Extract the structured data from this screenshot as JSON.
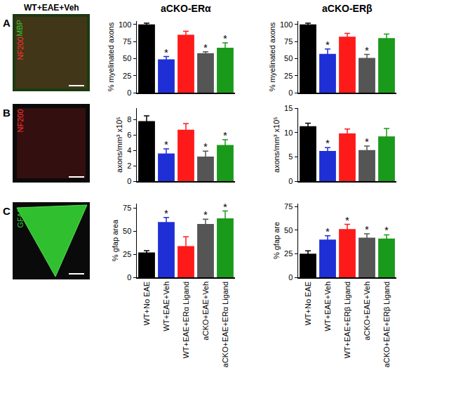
{
  "figure": {
    "column_headers": [
      "WT+EAE+Veh",
      "aCKO-ERα",
      "aCKO-ERβ"
    ],
    "panels": [
      {
        "letter": "A",
        "stain_labels": [
          {
            "text": "MBP",
            "color": "#33cc33"
          },
          {
            "text": "NF200",
            "color": "#ff3333"
          }
        ]
      },
      {
        "letter": "B",
        "stain_labels": [
          {
            "text": "NF200",
            "color": "#ff3333"
          }
        ]
      },
      {
        "letter": "C",
        "stain_labels": [
          {
            "text": "GFAP",
            "color": "#33cc33"
          }
        ]
      }
    ]
  },
  "chart_data": [
    {
      "type": "bar",
      "y_label": "% myelinated axons",
      "categories": [
        "WT+No EAE",
        "WT+EAE+Veh",
        "WT+EAE+ERα Ligand",
        "aCKO+EAE+Veh",
        "aCKO+EAE+ERα Ligand"
      ],
      "values": [
        100,
        49,
        85,
        58,
        66
      ],
      "errors": [
        2,
        4,
        5,
        2,
        7
      ],
      "colors": [
        "#000000",
        "#1f2fd6",
        "#ff1a1a",
        "#555555",
        "#1a9a1a"
      ],
      "annotations": [
        null,
        "*",
        null,
        "*",
        "*"
      ],
      "ylim": [
        0,
        105
      ],
      "yticks": [
        0,
        25,
        50,
        75,
        100
      ],
      "tick_labels": "y"
    },
    {
      "type": "bar",
      "y_label": "% myelinated axons",
      "categories": [
        "WT+No EAE",
        "WT+EAE+Veh",
        "WT+EAE+ERβ Ligand",
        "aCKO+EAE+Veh",
        "aCKO+EAE+ERβ Ligand"
      ],
      "values": [
        100,
        57,
        82,
        51,
        80
      ],
      "errors": [
        2,
        7,
        5,
        5,
        6
      ],
      "colors": [
        "#000000",
        "#1f2fd6",
        "#ff1a1a",
        "#555555",
        "#1a9a1a"
      ],
      "annotations": [
        null,
        "*",
        null,
        "*",
        null
      ],
      "ylim": [
        0,
        105
      ],
      "yticks": [
        0,
        25,
        50,
        75,
        100
      ],
      "tick_labels": "y"
    },
    {
      "type": "bar",
      "y_label": "axons/mm³ x10⁵",
      "categories": [
        "WT+No EAE",
        "WT+EAE+Veh",
        "WT+EAE+ERα Ligand",
        "aCKO+EAE+Veh",
        "aCKO+EAE+ERα Ligand"
      ],
      "values": [
        7.8,
        3.6,
        6.7,
        3.2,
        4.7
      ],
      "errors": [
        0.7,
        0.6,
        0.8,
        0.7,
        0.7
      ],
      "colors": [
        "#000000",
        "#1f2fd6",
        "#ff1a1a",
        "#555555",
        "#1a9a1a"
      ],
      "annotations": [
        null,
        "*",
        null,
        "*",
        "*"
      ],
      "ylim": [
        0,
        9.5
      ],
      "yticks": [
        0,
        2,
        4,
        6,
        8
      ],
      "tick_labels": "y"
    },
    {
      "type": "bar",
      "y_label": "axons/mm³ x10⁵",
      "categories": [
        "WT+No EAE",
        "WT+EAE+Veh",
        "WT+EAE+ERβ Ligand",
        "aCKO+EAE+Veh",
        "aCKO+EAE+ERβ Ligand"
      ],
      "values": [
        11.3,
        6.2,
        9.8,
        6.4,
        9.2
      ],
      "errors": [
        0.6,
        0.7,
        0.9,
        0.8,
        1.6
      ],
      "colors": [
        "#000000",
        "#1f2fd6",
        "#ff1a1a",
        "#555555",
        "#1a9a1a"
      ],
      "annotations": [
        null,
        "*",
        null,
        "*",
        null
      ],
      "ylim": [
        0,
        15
      ],
      "yticks": [
        0,
        5,
        10,
        15
      ],
      "tick_labels": "y"
    },
    {
      "type": "bar",
      "y_label": "% gfap area",
      "categories": [
        "WT+No EAE",
        "WT+EAE+Veh",
        "WT+EAE+ERα Ligand",
        "aCKO+EAE+Veh",
        "aCKO+EAE+ERα Ligand"
      ],
      "values": [
        27,
        60,
        34,
        58,
        64
      ],
      "errors": [
        2,
        5,
        10,
        5,
        8
      ],
      "colors": [
        "#000000",
        "#1f2fd6",
        "#ff1a1a",
        "#555555",
        "#1a9a1a"
      ],
      "annotations": [
        null,
        "*",
        null,
        "*",
        "*"
      ],
      "ylim": [
        0,
        80
      ],
      "yticks": [
        0,
        25,
        50,
        75
      ]
    },
    {
      "type": "bar",
      "y_label": "% gfap are",
      "categories": [
        "WT+No EAE",
        "WT+EAE+Veh",
        "WT+EAE+ERβ Ligand",
        "aCKO+EAE+Veh",
        "aCKO+EAE+ERβ Ligand"
      ],
      "values": [
        25,
        40,
        51,
        42,
        41
      ],
      "errors": [
        3,
        4,
        5,
        4,
        4
      ],
      "colors": [
        "#000000",
        "#1f2fd6",
        "#ff1a1a",
        "#555555",
        "#1a9a1a"
      ],
      "annotations": [
        null,
        "*",
        "*",
        "*",
        "*"
      ],
      "ylim": [
        0,
        78
      ],
      "yticks": [
        0,
        25,
        50,
        75
      ]
    }
  ]
}
